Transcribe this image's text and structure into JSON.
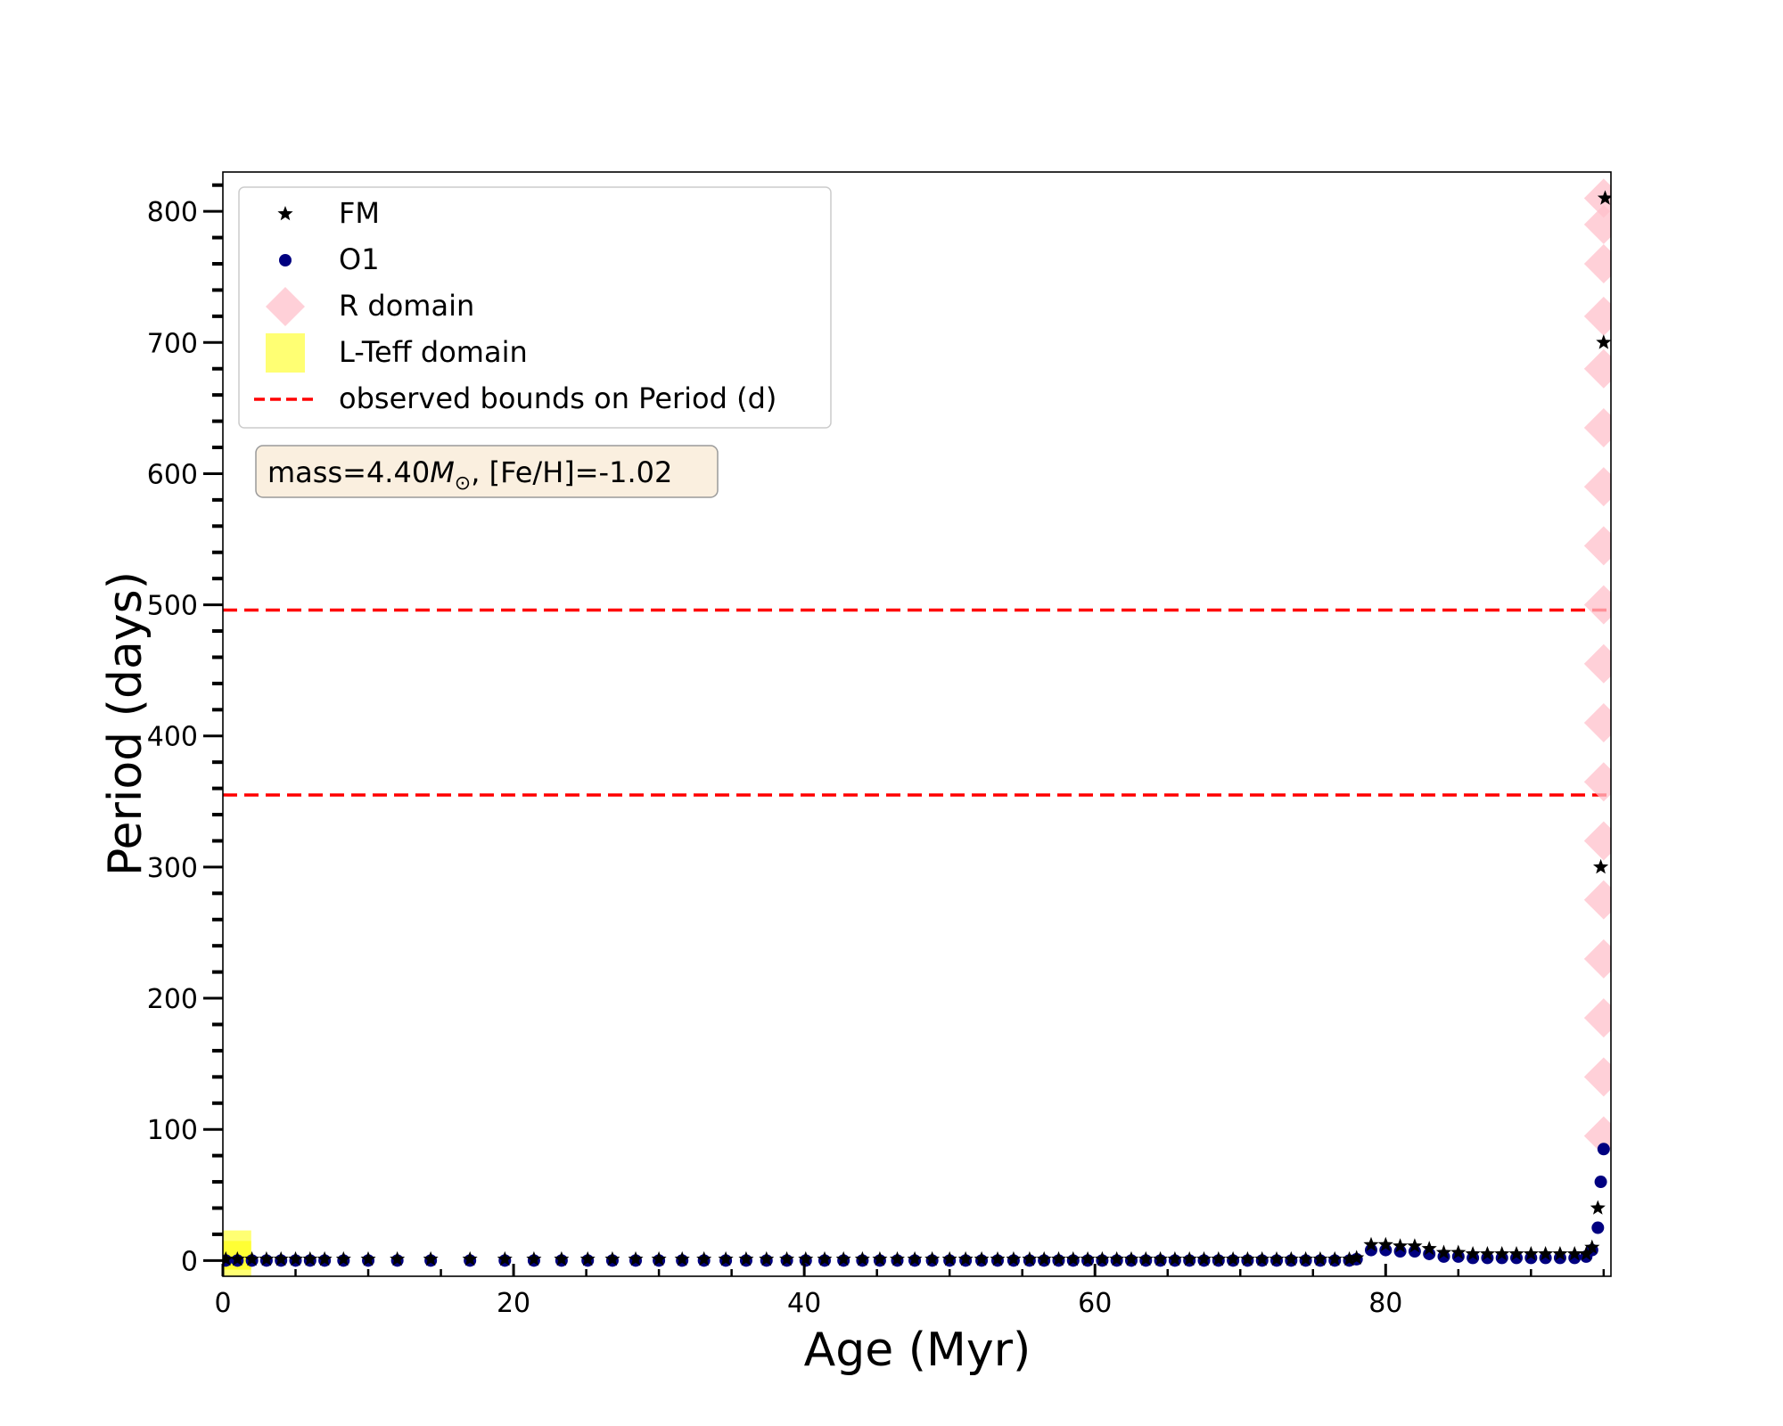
{
  "chart_data": {
    "type": "scatter",
    "title": "",
    "xlabel": "Age (Myr)",
    "ylabel": "Period (days)",
    "xlim": [
      0,
      95.5
    ],
    "ylim": [
      -12,
      830
    ],
    "xticks": [
      0,
      20,
      40,
      60,
      80
    ],
    "yticks": [
      0,
      100,
      200,
      300,
      400,
      500,
      600,
      700,
      800
    ],
    "x_minor_step": 5,
    "y_minor_step": 20,
    "grid": false,
    "legend_position": "top-left",
    "legend": [
      {
        "label": "FM",
        "marker": "star",
        "color": "#000000"
      },
      {
        "label": "O1",
        "marker": "circle",
        "color": "#000080"
      },
      {
        "label": "R domain",
        "marker": "diamond",
        "color": "#FFC0CB"
      },
      {
        "label": "L-Teff domain",
        "marker": "square",
        "color": "#FFFF00"
      },
      {
        "label": "observed bounds on Period (d)",
        "marker": "dashed-line",
        "color": "#FF0000"
      }
    ],
    "annotation": {
      "prefix": "mass=4.40",
      "symbol": "M",
      "subscript": "⊙",
      "suffix": ", [Fe/H]=-1.02"
    },
    "observed_bounds": [
      355,
      496
    ],
    "series": [
      {
        "name": "FM",
        "marker": "star",
        "color": "#000000",
        "x": [
          0.2,
          1.0,
          2.0,
          3.0,
          4.0,
          5.0,
          6.0,
          7.0,
          8.3,
          10.0,
          12.0,
          14.3,
          17.0,
          19.4,
          21.4,
          23.3,
          25.1,
          26.8,
          28.4,
          30.0,
          31.6,
          33.1,
          34.6,
          36.0,
          37.4,
          38.8,
          40.1,
          41.4,
          42.7,
          44.0,
          45.2,
          46.4,
          47.6,
          48.8,
          50.0,
          51.1,
          52.2,
          53.3,
          54.4,
          55.5,
          56.5,
          57.5,
          58.5,
          59.5,
          60.5,
          61.5,
          62.5,
          63.5,
          64.5,
          65.5,
          66.5,
          67.5,
          68.5,
          69.5,
          70.5,
          71.5,
          72.5,
          73.5,
          74.5,
          75.5,
          76.5,
          77.5,
          78.0,
          79.0,
          80.0,
          81.0,
          82.0,
          83.0,
          84.0,
          85.0,
          86.0,
          87.0,
          88.0,
          89.0,
          90.0,
          91.0,
          92.0,
          93.0,
          93.8,
          94.2,
          94.6,
          94.8,
          95.0,
          95.1
        ],
        "y": [
          1,
          1,
          1,
          1,
          1,
          1,
          1,
          1,
          1,
          1,
          1,
          1,
          1,
          1,
          1,
          1,
          1,
          1,
          1,
          1,
          1,
          1,
          1,
          1,
          1,
          1,
          1,
          1,
          1,
          1,
          1,
          1,
          1,
          1,
          1,
          1,
          1,
          1,
          1,
          1,
          1,
          1,
          1,
          1,
          1,
          1,
          1,
          1,
          1,
          1,
          1,
          1,
          1,
          1,
          1,
          1,
          1,
          1,
          1,
          1,
          1,
          1,
          2,
          12,
          12,
          11,
          11,
          9,
          6,
          6,
          5,
          5,
          5,
          5,
          5,
          5,
          5,
          5,
          5,
          10,
          40,
          300,
          700,
          810
        ]
      },
      {
        "name": "O1",
        "marker": "circle",
        "color": "#000080",
        "x": [
          0.2,
          1.0,
          2.0,
          3.0,
          4.0,
          5.0,
          6.0,
          7.0,
          8.3,
          10.0,
          12.0,
          14.3,
          17.0,
          19.4,
          21.4,
          23.3,
          25.1,
          26.8,
          28.4,
          30.0,
          31.6,
          33.1,
          34.6,
          36.0,
          37.4,
          38.8,
          40.1,
          41.4,
          42.7,
          44.0,
          45.2,
          46.4,
          47.6,
          48.8,
          50.0,
          51.1,
          52.2,
          53.3,
          54.4,
          55.5,
          56.5,
          57.5,
          58.5,
          59.5,
          60.5,
          61.5,
          62.5,
          63.5,
          64.5,
          65.5,
          66.5,
          67.5,
          68.5,
          69.5,
          70.5,
          71.5,
          72.5,
          73.5,
          74.5,
          75.5,
          76.5,
          77.5,
          78.0,
          79.0,
          80.0,
          81.0,
          82.0,
          83.0,
          84.0,
          85.0,
          86.0,
          87.0,
          88.0,
          89.0,
          90.0,
          91.0,
          92.0,
          93.0,
          93.8,
          94.2,
          94.6,
          94.8,
          95.0
        ],
        "y": [
          0,
          0,
          0,
          0,
          0,
          0,
          0,
          0,
          0,
          0,
          0,
          0,
          0,
          0,
          0,
          0,
          0,
          0,
          0,
          0,
          0,
          0,
          0,
          0,
          0,
          0,
          0,
          0,
          0,
          0,
          0,
          0,
          0,
          0,
          0,
          0,
          0,
          0,
          0,
          0,
          0,
          0,
          0,
          0,
          0,
          0,
          0,
          0,
          0,
          0,
          0,
          0,
          0,
          0,
          0,
          0,
          0,
          0,
          0,
          0,
          0,
          0,
          1,
          8,
          8,
          7,
          7,
          5,
          3,
          3,
          2,
          2,
          2,
          2,
          2,
          2,
          2,
          2,
          3,
          8,
          25,
          60,
          85
        ]
      },
      {
        "name": "R domain",
        "marker": "diamond",
        "color": "#FFC0CB",
        "x": [
          95.0,
          95.0,
          95.0,
          95.0,
          95.0,
          95.0,
          95.0,
          95.0,
          95.0,
          95.0,
          95.0,
          95.0,
          95.0,
          95.0,
          95.0,
          95.0,
          95.0,
          95.0
        ],
        "y": [
          95,
          140,
          185,
          230,
          275,
          320,
          365,
          410,
          455,
          500,
          545,
          590,
          635,
          680,
          720,
          760,
          790,
          810
        ]
      },
      {
        "name": "L-Teff domain",
        "marker": "square",
        "color": "#FFFF00",
        "x": [
          0.6,
          0.6
        ],
        "y": [
          0,
          8
        ]
      }
    ]
  }
}
